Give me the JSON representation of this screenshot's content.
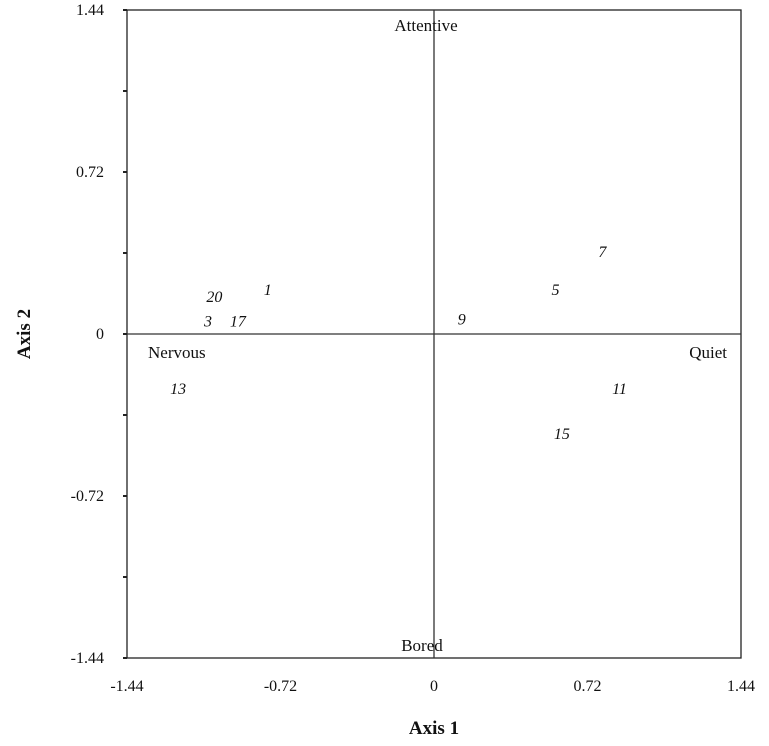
{
  "chart_data": {
    "type": "scatter",
    "xlabel": "Axis 1",
    "ylabel": "Axis 2",
    "xlim": [
      -1.44,
      1.44
    ],
    "ylim": [
      -1.44,
      1.44
    ],
    "x_ticks": [
      {
        "value": -1.44,
        "label": "-1.44"
      },
      {
        "value": -0.72,
        "label": "-0.72"
      },
      {
        "value": 0,
        "label": "0"
      },
      {
        "value": 0.72,
        "label": "0.72"
      },
      {
        "value": 1.44,
        "label": "1.44"
      }
    ],
    "y_ticks": [
      {
        "value": 1.44,
        "label": "1.44"
      },
      {
        "value": 0.72,
        "label": "0.72"
      },
      {
        "value": 0,
        "label": "0"
      },
      {
        "value": -0.72,
        "label": "-0.72"
      },
      {
        "value": -1.44,
        "label": "-1.44"
      }
    ],
    "grid": false,
    "pole_labels": [
      {
        "text": "Attentive",
        "position": "top"
      },
      {
        "text": "Bored",
        "position": "bottom"
      },
      {
        "text": "Nervous",
        "position": "left"
      },
      {
        "text": "Quiet",
        "position": "right"
      }
    ],
    "points": [
      {
        "label": "1",
        "x": -0.78,
        "y": 0.2
      },
      {
        "label": "20",
        "x": -1.03,
        "y": 0.17
      },
      {
        "label": "3",
        "x": -1.06,
        "y": 0.06
      },
      {
        "label": "17",
        "x": -0.92,
        "y": 0.06
      },
      {
        "label": "9",
        "x": 0.13,
        "y": 0.07
      },
      {
        "label": "5",
        "x": 0.57,
        "y": 0.2
      },
      {
        "label": "7",
        "x": 0.79,
        "y": 0.37
      },
      {
        "label": "13",
        "x": -1.2,
        "y": -0.24
      },
      {
        "label": "11",
        "x": 0.87,
        "y": -0.24
      },
      {
        "label": "15",
        "x": 0.6,
        "y": -0.44
      }
    ]
  }
}
